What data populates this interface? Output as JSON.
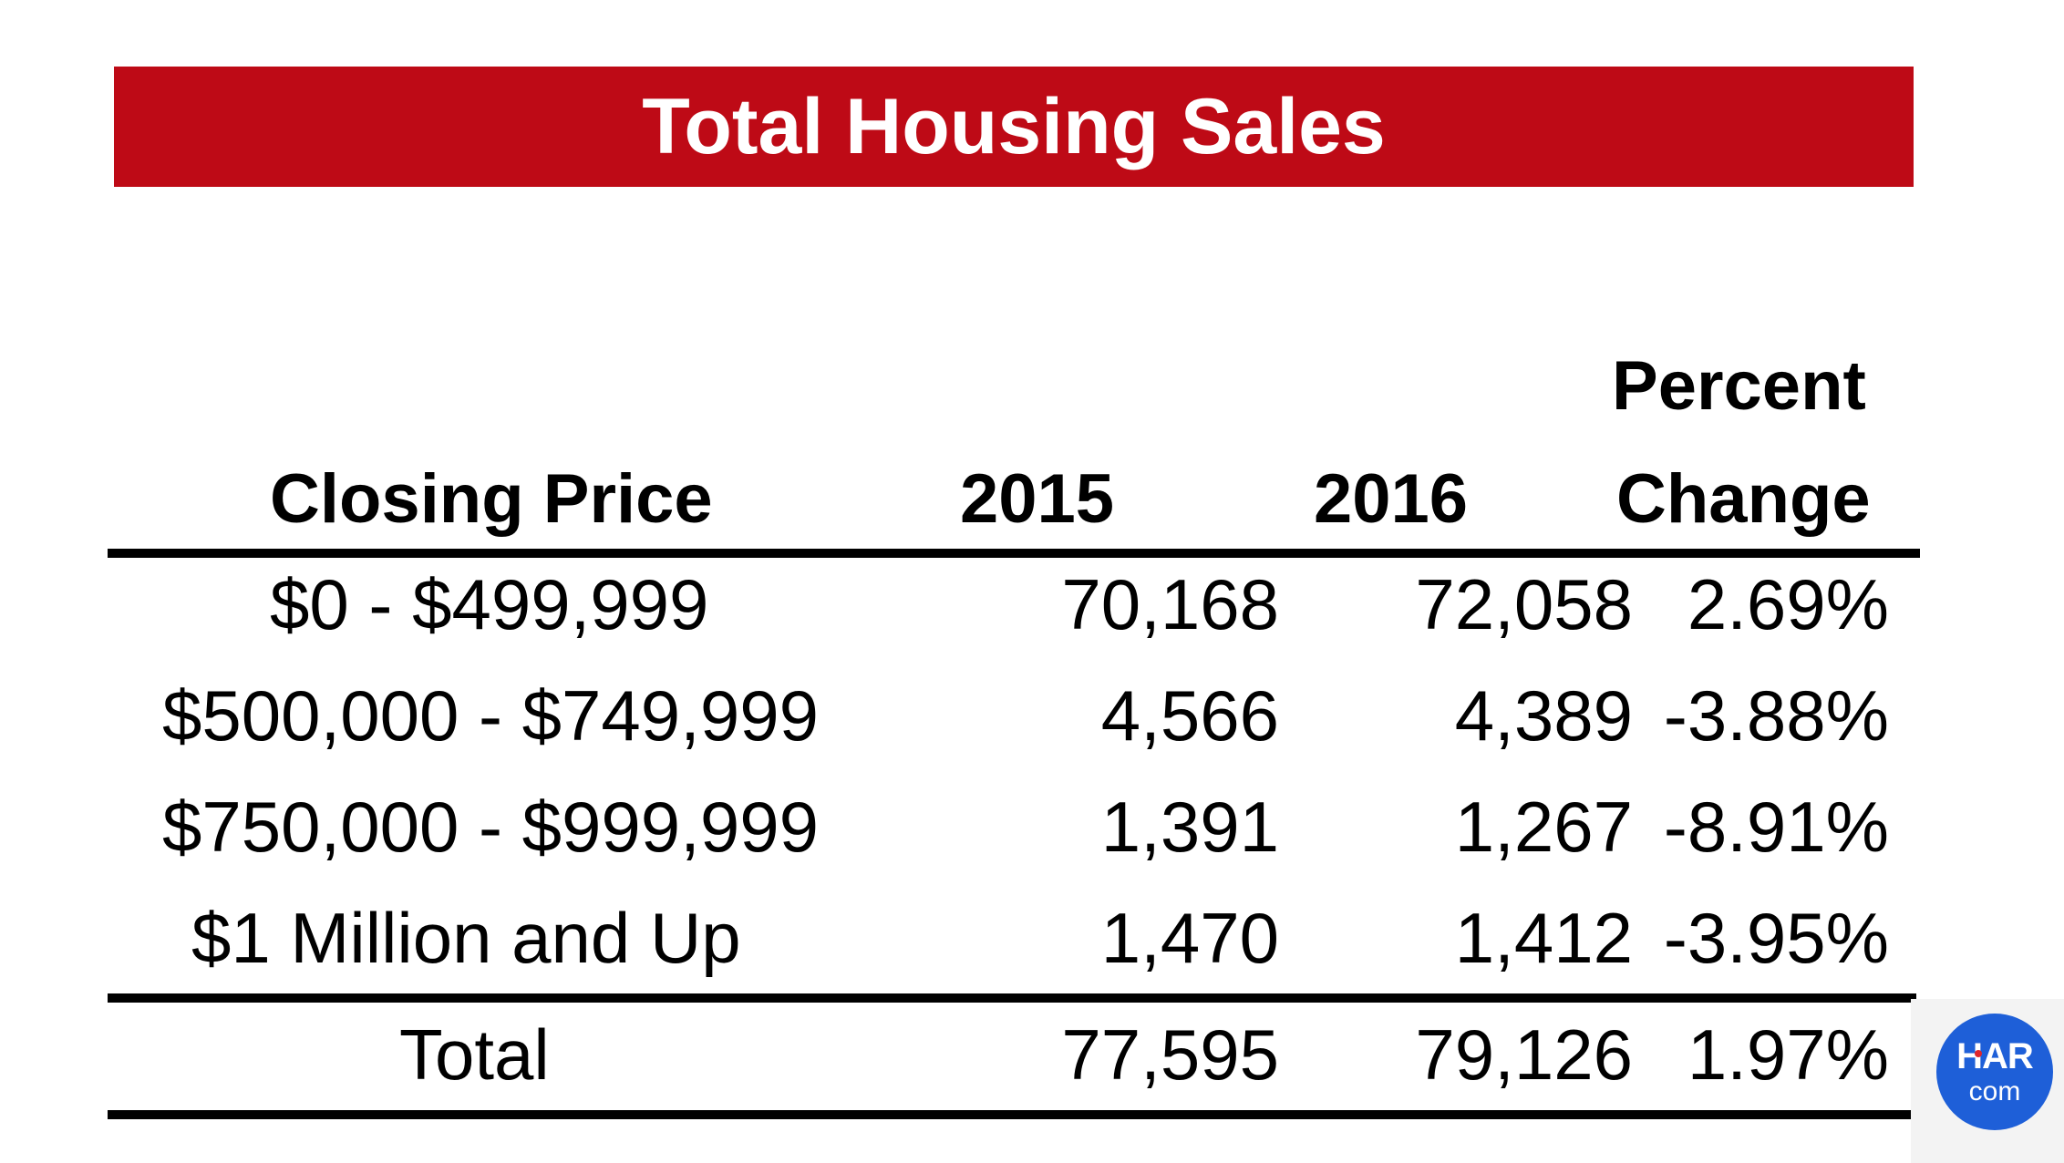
{
  "title": "Total Housing Sales",
  "table": {
    "headers": {
      "closing_price": "Closing Price",
      "year_2015": "2015",
      "year_2016": "2016",
      "percent_line1": "Percent",
      "percent_line2": "Change"
    },
    "rows": [
      {
        "range": "$0 - $499,999",
        "y2015": "70,168",
        "y2016": "72,058",
        "change": "2.69%"
      },
      {
        "range": "$500,000 - $749,999",
        "y2015": "4,566",
        "y2016": "4,389",
        "change": "-3.88%"
      },
      {
        "range": "$750,000 - $999,999",
        "y2015": "1,391",
        "y2016": "1,267",
        "change": "-8.91%"
      },
      {
        "range": "$1 Million and Up",
        "y2015": "1,470",
        "y2016": "1,412",
        "change": "-3.95%"
      }
    ],
    "total": {
      "label": "Total",
      "y2015": "77,595",
      "y2016": "79,126",
      "change": "1.97%"
    }
  },
  "logo": {
    "text_top": "HAR",
    "text_bottom": "com",
    "icon": "har-com-logo-icon",
    "colors": {
      "circle": "#1e5fd8",
      "dot": "#e0262b"
    }
  },
  "colors": {
    "banner": "#be0a16",
    "banner_text": "#ffffff",
    "rules": "#000000"
  }
}
